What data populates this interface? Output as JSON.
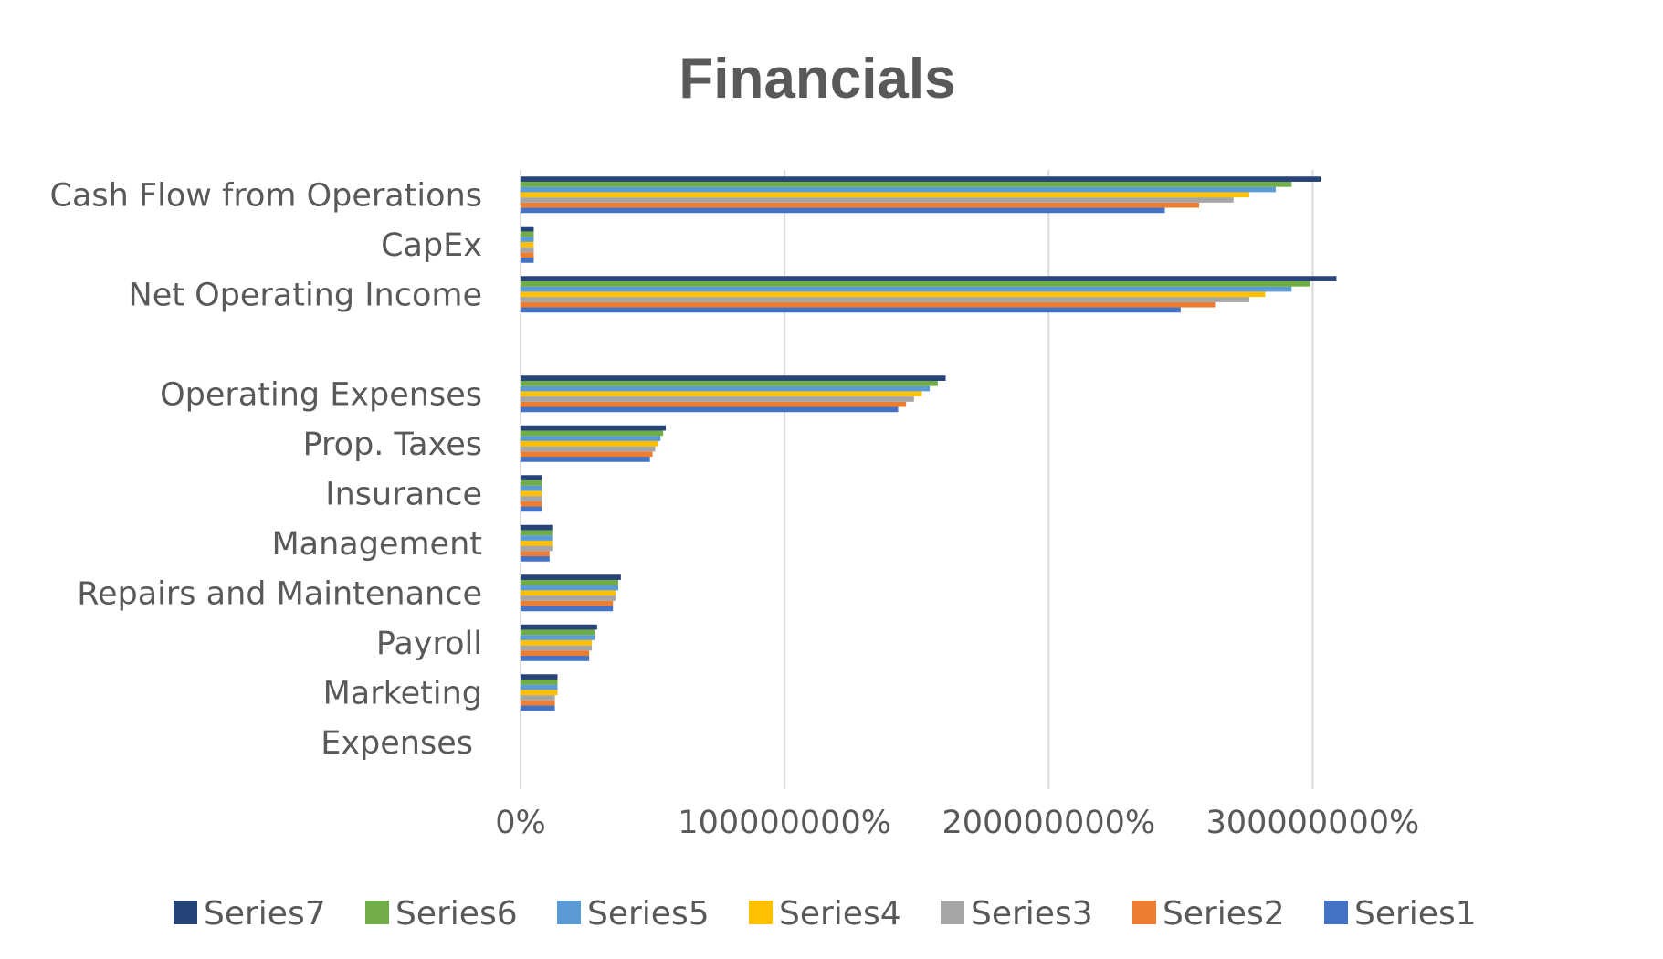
{
  "chart_data": {
    "type": "bar",
    "orientation": "horizontal",
    "title": "Financials",
    "xlabel": "",
    "ylabel": "",
    "xlim": [
      0,
      350000000
    ],
    "x_ticks": [
      {
        "value": 0,
        "label": "0%"
      },
      {
        "value": 100000000,
        "label": "100000000%"
      },
      {
        "value": 200000000,
        "label": "200000000%"
      },
      {
        "value": 300000000,
        "label": "300000000%"
      }
    ],
    "grid": true,
    "legend_position": "bottom",
    "categories": [
      "Cash Flow from Operations",
      "CapEx",
      "Net Operating Income",
      "",
      "Operating Expenses",
      "Prop. Taxes",
      "Insurance",
      "Management",
      "Repairs and Maintenance",
      "Payroll",
      "Marketing",
      "Expenses"
    ],
    "series": [
      {
        "name": "Series1",
        "color": "#4472c4",
        "values": [
          244000000,
          5000000,
          250000000,
          null,
          143000000,
          49000000,
          8000000,
          11000000,
          35000000,
          26000000,
          13000000,
          null
        ]
      },
      {
        "name": "Series2",
        "color": "#ed7d31",
        "values": [
          257000000,
          5000000,
          263000000,
          null,
          146000000,
          50000000,
          8000000,
          11000000,
          35000000,
          26000000,
          13000000,
          null
        ]
      },
      {
        "name": "Series3",
        "color": "#a5a5a5",
        "values": [
          270000000,
          5000000,
          276000000,
          null,
          149000000,
          51000000,
          8000000,
          12000000,
          36000000,
          27000000,
          13000000,
          null
        ]
      },
      {
        "name": "Series4",
        "color": "#ffc000",
        "values": [
          276000000,
          5000000,
          282000000,
          null,
          152000000,
          52000000,
          8000000,
          12000000,
          36000000,
          27000000,
          14000000,
          null
        ]
      },
      {
        "name": "Series5",
        "color": "#5b9bd5",
        "values": [
          286000000,
          5000000,
          292000000,
          null,
          155000000,
          53000000,
          8000000,
          12000000,
          37000000,
          28000000,
          14000000,
          null
        ]
      },
      {
        "name": "Series6",
        "color": "#70ad47",
        "values": [
          292000000,
          5000000,
          299000000,
          null,
          158000000,
          54000000,
          8000000,
          12000000,
          37000000,
          28000000,
          14000000,
          null
        ]
      },
      {
        "name": "Series7",
        "color": "#264478",
        "values": [
          303000000,
          5000000,
          309000000,
          null,
          161000000,
          55000000,
          8000000,
          12000000,
          38000000,
          29000000,
          14000000,
          null
        ]
      }
    ],
    "legend_order": [
      "Series7",
      "Series6",
      "Series5",
      "Series4",
      "Series3",
      "Series2",
      "Series1"
    ]
  }
}
